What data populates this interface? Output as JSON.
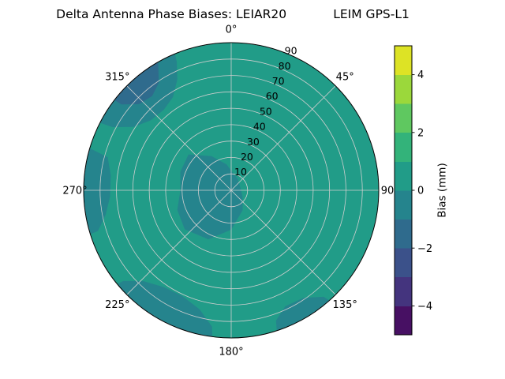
{
  "figure": {
    "background": "#ffffff"
  },
  "chart_data": {
    "type": "polar_contour",
    "title": "Delta Antenna Phase Biases: LEIAR20            LEIM GPS-L1",
    "antenna": "LEIAR20",
    "station": "LEIM",
    "signal": "GPS-L1",
    "r_max": 90,
    "r_ticks": [
      10,
      20,
      30,
      40,
      50,
      60,
      70,
      80,
      90
    ],
    "r_label_angle": 22.5,
    "grid_color": "#cfcfcf",
    "theta_ticks": [
      {
        "angle": 0,
        "label": "0°"
      },
      {
        "angle": 45,
        "label": "45°"
      },
      {
        "angle": 90,
        "label": "90"
      },
      {
        "angle": 135,
        "label": "135°"
      },
      {
        "angle": 180,
        "label": "180°"
      },
      {
        "angle": 225,
        "label": "225°"
      },
      {
        "angle": 270,
        "label": "270°"
      },
      {
        "angle": 315,
        "label": "315°"
      }
    ],
    "base_band": {
      "band_mm": [
        0,
        1
      ],
      "color": "#219c88"
    },
    "regions": [
      {
        "name": "west-rim",
        "band_mm": [
          -1,
          0
        ],
        "color": "#25848d",
        "points": [
          [
            252,
            105
          ],
          [
            253,
            85
          ],
          [
            259,
            78
          ],
          [
            267,
            74
          ],
          [
            277,
            74
          ],
          [
            285,
            78
          ],
          [
            288,
            105
          ]
        ]
      },
      {
        "name": "northwest-rim",
        "band_mm": [
          -1,
          0
        ],
        "color": "#25848d",
        "points": [
          [
            296,
            105
          ],
          [
            298,
            82
          ],
          [
            303,
            71
          ],
          [
            311,
            65
          ],
          [
            320,
            64
          ],
          [
            328,
            67
          ],
          [
            334,
            75
          ],
          [
            337,
            85
          ],
          [
            339,
            105
          ]
        ]
      },
      {
        "name": "northwest-rim-core",
        "band_mm": [
          -2,
          -1
        ],
        "color": "#2f6b8d",
        "points": [
          [
            307,
            105
          ],
          [
            308,
            85
          ],
          [
            313,
            77
          ],
          [
            320,
            75
          ],
          [
            326,
            79
          ],
          [
            330,
            89
          ],
          [
            331,
            105
          ]
        ]
      },
      {
        "name": "south-rim",
        "band_mm": [
          -1,
          0
        ],
        "color": "#25848d",
        "points": [
          [
            186,
            105
          ],
          [
            188,
            84
          ],
          [
            195,
            75
          ],
          [
            205,
            71
          ],
          [
            215,
            72
          ],
          [
            224,
            77
          ],
          [
            230,
            86
          ],
          [
            232,
            105
          ]
        ]
      },
      {
        "name": "southeast-rim",
        "band_mm": [
          -1,
          0
        ],
        "color": "#25848d",
        "points": [
          [
            136,
            105
          ],
          [
            139,
            86
          ],
          [
            146,
            79
          ],
          [
            155,
            78
          ],
          [
            161,
            84
          ],
          [
            164,
            105
          ]
        ]
      },
      {
        "name": "center-blob",
        "band_mm": [
          -1,
          0
        ],
        "color": "#25848d",
        "points": [
          [
            0,
            12
          ],
          [
            30,
            8
          ],
          [
            60,
            6
          ],
          [
            90,
            6
          ],
          [
            120,
            8
          ],
          [
            150,
            14
          ],
          [
            180,
            24
          ],
          [
            205,
            33
          ],
          [
            230,
            37
          ],
          [
            250,
            35
          ],
          [
            270,
            31
          ],
          [
            290,
            33
          ],
          [
            310,
            34
          ],
          [
            330,
            24
          ],
          [
            350,
            16
          ]
        ]
      }
    ],
    "colorbar": {
      "label": "Bias (mm)",
      "min": -5,
      "max": 5,
      "tick_values": [
        -4,
        -2,
        0,
        2,
        4
      ],
      "tick_labels": [
        "−4",
        "−2",
        "0",
        "2",
        "4"
      ],
      "segments": [
        "#471063",
        "#44347e",
        "#3b518a",
        "#2f6b8d",
        "#25848d",
        "#219c88",
        "#33b37a",
        "#5fc860",
        "#9bd83b",
        "#dde325"
      ]
    }
  }
}
